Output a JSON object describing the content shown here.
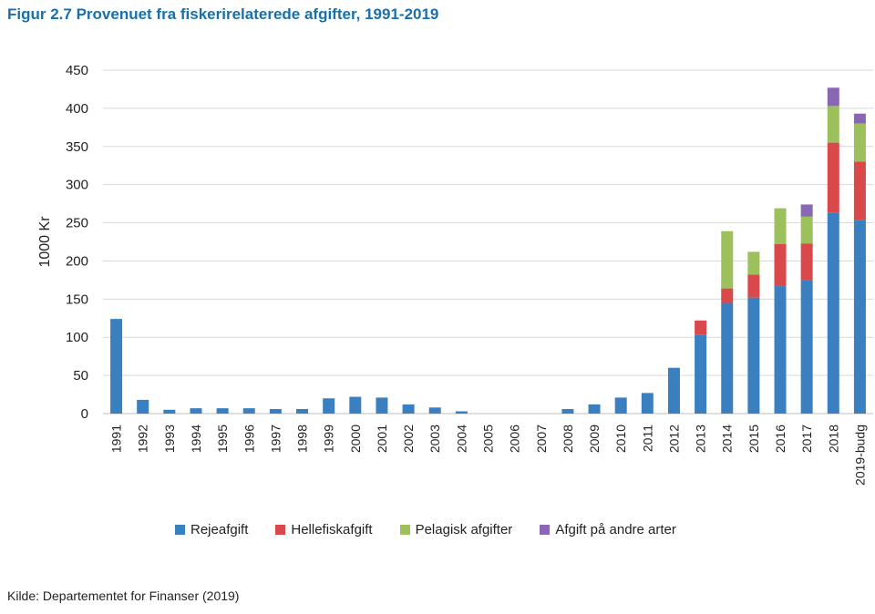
{
  "figure": {
    "title": "Figur 2.7  Provenuet fra fiskerirelaterede afgifter, 1991-2019",
    "source": "Kilde: Departementet for Finanser (2019)"
  },
  "chart_data": {
    "type": "bar",
    "stacked": true,
    "title": "Figur 2.7  Provenuet fra fiskerirelaterede afgifter, 1991-2019",
    "xlabel": "",
    "ylabel": "1000 Kr",
    "ylim": [
      0,
      450
    ],
    "yticks": [
      0,
      50,
      100,
      150,
      200,
      250,
      300,
      350,
      400,
      450
    ],
    "grid": true,
    "legend_position": "bottom",
    "categories": [
      "1991",
      "1992",
      "1993",
      "1994",
      "1995",
      "1996",
      "1997",
      "1998",
      "1999",
      "2000",
      "2001",
      "2002",
      "2003",
      "2004",
      "2005",
      "2006",
      "2007",
      "2008",
      "2009",
      "2010",
      "2011",
      "2012",
      "2013",
      "2014",
      "2015",
      "2016",
      "2017",
      "2018",
      "2019-budg"
    ],
    "series": [
      {
        "name": "Rejeafgift",
        "color": "#3a80c1",
        "values": [
          124,
          18,
          5,
          7,
          7,
          7,
          6,
          6,
          20,
          22,
          21,
          12,
          8,
          3,
          0,
          0,
          0,
          6,
          12,
          21,
          27,
          60,
          103,
          145,
          152,
          167,
          175,
          263,
          254
        ]
      },
      {
        "name": "Hellefiskafgift",
        "color": "#d9494c",
        "values": [
          0,
          0,
          0,
          0,
          0,
          0,
          0,
          0,
          0,
          0,
          0,
          0,
          0,
          0,
          0,
          0,
          0,
          0,
          0,
          0,
          0,
          0,
          19,
          19,
          30,
          55,
          48,
          92,
          76
        ]
      },
      {
        "name": "Pelagisk afgifter",
        "color": "#9cc15c",
        "values": [
          0,
          0,
          0,
          0,
          0,
          0,
          0,
          0,
          0,
          0,
          0,
          0,
          0,
          0,
          0,
          0,
          0,
          0,
          0,
          0,
          0,
          0,
          0,
          75,
          30,
          47,
          35,
          48,
          50
        ]
      },
      {
        "name": "Afgift på andre arter",
        "color": "#8a67b5",
        "values": [
          0,
          0,
          0,
          0,
          0,
          0,
          0,
          0,
          0,
          0,
          0,
          0,
          0,
          0,
          0,
          0,
          0,
          0,
          0,
          0,
          0,
          0,
          0,
          0,
          0,
          0,
          16,
          24,
          13
        ]
      }
    ]
  }
}
